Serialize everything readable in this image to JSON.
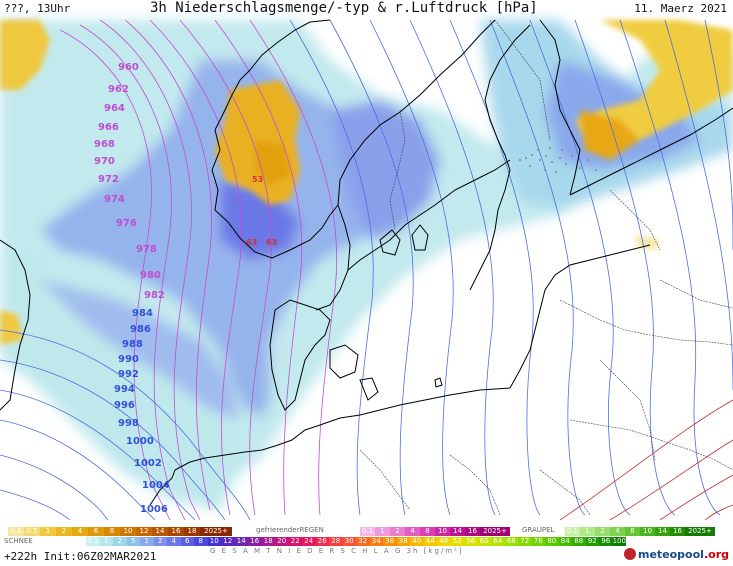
{
  "header": {
    "left": "???, 13Uhr",
    "title": "3h Niederschlagsmenge/-typ & r.Luftdruck [hPa]",
    "date": "11. Maerz 2021"
  },
  "isobars": {
    "pink_labels": [
      "960",
      "962",
      "964",
      "966",
      "968",
      "970",
      "972",
      "974",
      "976",
      "978",
      "980",
      "982"
    ],
    "blue_labels": [
      "984",
      "986",
      "988",
      "990",
      "992",
      "994",
      "996",
      "998",
      "1000",
      "1002",
      "1004",
      "1006"
    ],
    "red_labels": [
      "53",
      "63",
      "63"
    ]
  },
  "legend": {
    "snow": {
      "label": "SCHNEE",
      "steps": [
        "0.1",
        "0.5",
        "1",
        "2",
        "4",
        "6",
        "8",
        "10",
        "12",
        "14",
        "16",
        "18",
        "2025+"
      ],
      "colors": [
        "#f5e6a0",
        "#f3d870",
        "#f0c840",
        "#eab820",
        "#e5a810",
        "#df9808",
        "#d88800",
        "#cf7800",
        "#c46800",
        "#b85800",
        "#aa4800",
        "#9a3800",
        "#8a2800"
      ]
    },
    "freezing_rain": {
      "label": "gefrierenderREGEN",
      "steps": [
        "0.1",
        "1",
        "2",
        "4",
        "8",
        "10",
        "14",
        "16",
        "2025+"
      ],
      "colors": [
        "#f4b8e8",
        "#f09ade",
        "#ea7cd2",
        "#e25ec4",
        "#d840b4",
        "#cc28a4",
        "#be1494",
        "#ae0884",
        "#9c0074"
      ]
    },
    "graupel": {
      "label": "GRAUPEL",
      "steps": [
        "0.1",
        "1",
        "2",
        "4",
        "8",
        "10",
        "14",
        "16",
        "2025+"
      ],
      "colors": [
        "#c8f0a8",
        "#b0e88a",
        "#96de6c",
        "#7cd24e",
        "#62c432",
        "#4ab41c",
        "#34a20c",
        "#228e04",
        "#147a00"
      ]
    },
    "rain": {
      "steps": [
        "0.1",
        "1",
        "2",
        "5",
        "1",
        "2",
        "4",
        "6",
        "8",
        "10",
        "12",
        "14",
        "16",
        "18",
        "20",
        "22",
        "24",
        "26",
        "28",
        "30",
        "32",
        "34",
        "36",
        "38",
        "40",
        "44",
        "48",
        "52",
        "56",
        "60",
        "64",
        "68",
        "72",
        "76",
        "80",
        "84",
        "88",
        "92",
        "96",
        "100"
      ],
      "colors": [
        "#c8f0f0",
        "#b4e6ec",
        "#a0d6ea",
        "#8cc4e8",
        "#8aa8ec",
        "#7c90ea",
        "#6c78e6",
        "#5c60e2",
        "#4c48dc",
        "#4034d0",
        "#5828c0",
        "#7024b0",
        "#8820a0",
        "#a41c90",
        "#c01880",
        "#d81470",
        "#e81860",
        "#f02c50",
        "#f44040",
        "#f65430",
        "#f66824",
        "#f67c18",
        "#f6900c",
        "#f6a404",
        "#f6b800",
        "#f6c800",
        "#f0d400",
        "#e6dc00",
        "#d8e200",
        "#c6e400",
        "#b2e400",
        "#9ce000",
        "#86da00",
        "#70d200",
        "#5ac800",
        "#44bc00",
        "#30ae00",
        "#209e00",
        "#148e00",
        "#0a7e00"
      ]
    },
    "total_label": "G E S A M T N I E D E R S C H L A G   3h  [kg/m²]"
  },
  "run_info": "+222h  Init:06Z02MAR2021",
  "brand": {
    "name": "meteopool",
    "tld": ".org"
  }
}
